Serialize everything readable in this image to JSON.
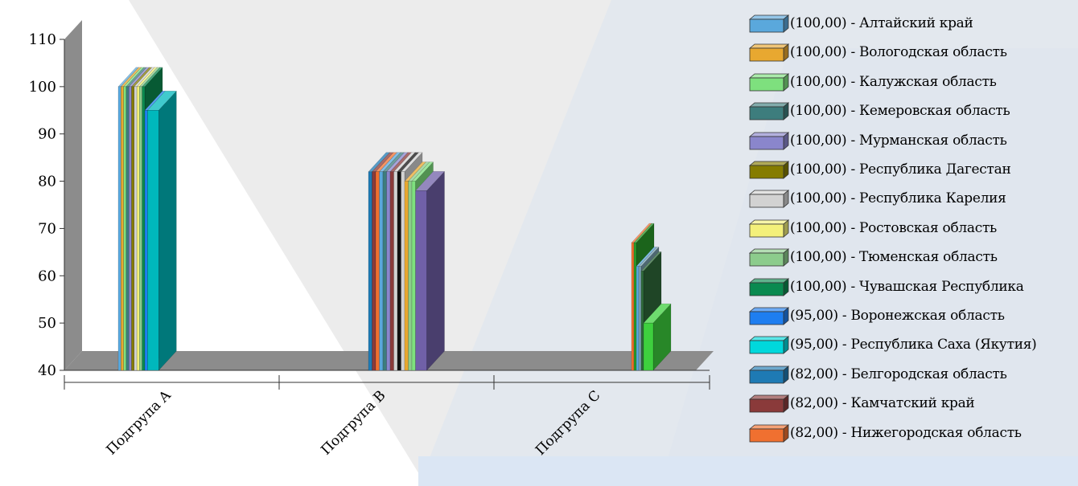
{
  "chart_data": {
    "type": "bar",
    "categories": [
      "Подгрупа A",
      "Подгрупа B",
      "Подгрупа C"
    ],
    "ylim": [
      40,
      110
    ],
    "yticks": [
      40,
      50,
      60,
      70,
      80,
      90,
      100,
      110
    ],
    "grid": false,
    "legend_position": "right",
    "series": [
      {
        "label": "(100,00) - Алтайский край",
        "group": "Подгрупа A",
        "value": 100,
        "color": "#5aa8dc"
      },
      {
        "label": "(100,00) - Вологодская область",
        "group": "Подгрупа A",
        "value": 100,
        "color": "#e8a830"
      },
      {
        "label": "(100,00) - Калужская область",
        "group": "Подгрупа A",
        "value": 100,
        "color": "#7ee07e"
      },
      {
        "label": "(100,00) - Кемеровская область",
        "group": "Подгрупа A",
        "value": 100,
        "color": "#3d7d7d"
      },
      {
        "label": "(100,00) - Мурманская область",
        "group": "Подгрупа A",
        "value": 100,
        "color": "#8a86cc"
      },
      {
        "label": "(100,00) - Республика Дагестан",
        "group": "Подгрупа A",
        "value": 100,
        "color": "#857c00"
      },
      {
        "label": "(100,00) - Республика Карелия",
        "group": "Подгрупа A",
        "value": 100,
        "color": "#d2d2d2"
      },
      {
        "label": "(100,00) - Ростовская область",
        "group": "Подгрупа A",
        "value": 100,
        "color": "#f3f07a"
      },
      {
        "label": "(100,00) - Тюменская область",
        "group": "Подгрупа A",
        "value": 100,
        "color": "#8ccc8c"
      },
      {
        "label": "(100,00) - Чувашская Республика",
        "group": "Подгрупа A",
        "value": 100,
        "color": "#0a8a50"
      },
      {
        "label": "(95,00) - Воронежская область",
        "group": "Подгрупа A",
        "value": 95,
        "color": "#1e7ef0"
      },
      {
        "label": "(95,00) - Республика Саха (Якутия)",
        "group": "Подгрупа A",
        "value": 95,
        "color": "#00d8dc"
      },
      {
        "label": "(82,00) - Белгородская область",
        "group": "Подгрупа B",
        "value": 82,
        "color": "#1e7ab4"
      },
      {
        "label": "(82,00) - Камчатский край",
        "group": "Подгрупа B",
        "value": 82,
        "color": "#8a3a3a"
      },
      {
        "label": "(82,00) - Нижегородская область",
        "group": "Подгрупа B",
        "value": 82,
        "color": "#f07030"
      }
    ],
    "visible_bars": {
      "Подгрупа A": [
        {
          "value": 100,
          "color": "#5aa8dc"
        },
        {
          "value": 100,
          "color": "#e8a830"
        },
        {
          "value": 100,
          "color": "#7ee07e"
        },
        {
          "value": 100,
          "color": "#3d7d7d"
        },
        {
          "value": 100,
          "color": "#8a86cc"
        },
        {
          "value": 100,
          "color": "#857c00"
        },
        {
          "value": 100,
          "color": "#d2d2d2"
        },
        {
          "value": 100,
          "color": "#f3f07a"
        },
        {
          "value": 100,
          "color": "#8ccc8c"
        },
        {
          "value": 100,
          "color": "#0a8a50"
        },
        {
          "value": 95,
          "color": "#1e7ef0"
        },
        {
          "value": 95,
          "color": "#00b8bc"
        }
      ],
      "Подгрупа B": [
        {
          "value": 82,
          "color": "#1e7ab4"
        },
        {
          "value": 82,
          "color": "#8a3a3a"
        },
        {
          "value": 82,
          "color": "#f07030"
        },
        {
          "value": 82,
          "color": "#5aa8dc"
        },
        {
          "value": 82,
          "color": "#3d7d7d"
        },
        {
          "value": 82,
          "color": "#8a86cc"
        },
        {
          "value": 82,
          "color": "#8a3a3a"
        },
        {
          "value": 82,
          "color": "#d2d2d2"
        },
        {
          "value": 82,
          "color": "#111111"
        },
        {
          "value": 82,
          "color": "#d2d2d2"
        },
        {
          "value": 80,
          "color": "#e8a830"
        },
        {
          "value": 80,
          "color": "#8ccc8c"
        },
        {
          "value": 80,
          "color": "#7ee07e"
        },
        {
          "value": 78,
          "color": "#7060a8"
        }
      ],
      "Подгрупа C": [
        {
          "value": 67,
          "color": "#f07030"
        },
        {
          "value": 67,
          "color": "#2a9a2a"
        },
        {
          "value": 62,
          "color": "#5aa8dc"
        },
        {
          "value": 62,
          "color": "#7aa0b0"
        },
        {
          "value": 61,
          "color": "#2f6a3a"
        },
        {
          "value": 50,
          "color": "#3ed03e"
        }
      ]
    }
  }
}
